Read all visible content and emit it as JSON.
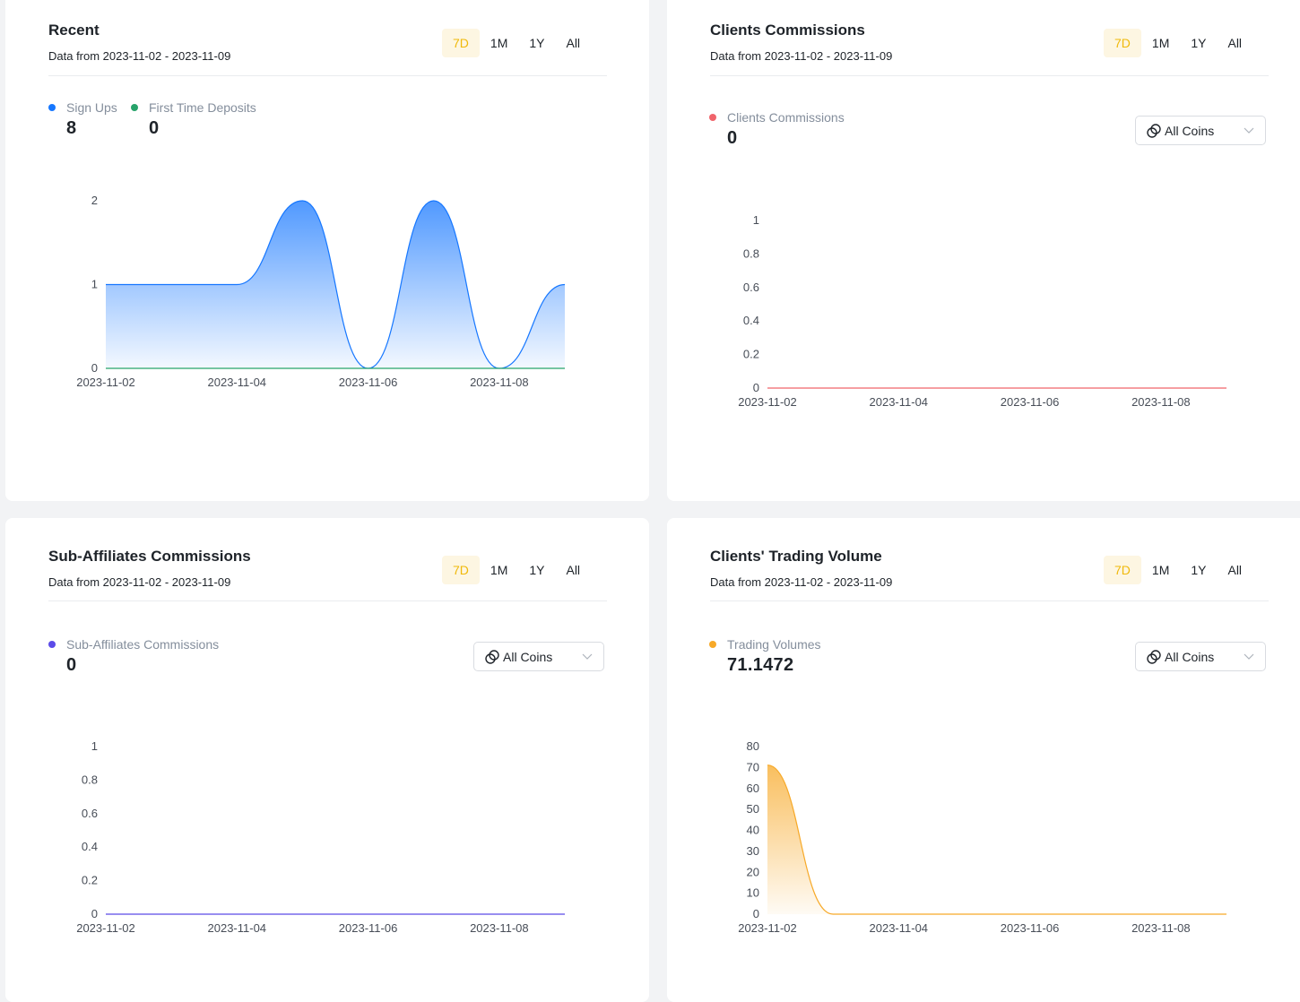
{
  "period_labels": [
    "7D",
    "1M",
    "1Y",
    "All"
  ],
  "active_period": "7D",
  "coin_select_label": "All Coins",
  "cards": [
    {
      "title": "Recent",
      "range": "Data from 2023-11-02 - 2023-11-09",
      "stats": [
        {
          "label": "Sign Ups",
          "value": "8",
          "color": "#1677ff"
        },
        {
          "label": "First Time Deposits",
          "value": "0",
          "color": "#27a36a"
        }
      ]
    },
    {
      "title": "Clients Commissions",
      "range": "Data from 2023-11-02 - 2023-11-09",
      "stats": [
        {
          "label": "Clients Commissions",
          "value": "0",
          "color": "#f0646b"
        }
      ]
    },
    {
      "title": "Sub-Affiliates Commissions",
      "range": "Data from 2023-11-02 - 2023-11-09",
      "stats": [
        {
          "label": "Sub-Affiliates Commissions",
          "value": "0",
          "color": "#5b4be8"
        }
      ]
    },
    {
      "title": "Clients' Trading Volume",
      "range": "Data from 2023-11-02 - 2023-11-09",
      "stats": [
        {
          "label": "Trading Volumes",
          "value": "71.1472",
          "color": "#f7a928"
        }
      ]
    }
  ],
  "chart_data": [
    {
      "type": "area",
      "x": [
        "2023-11-02",
        "2023-11-03",
        "2023-11-04",
        "2023-11-05",
        "2023-11-06",
        "2023-11-07",
        "2023-11-08",
        "2023-11-09"
      ],
      "xticks": [
        "2023-11-02",
        "2023-11-04",
        "2023-11-06",
        "2023-11-08"
      ],
      "yticks": [
        "0",
        "1",
        "2"
      ],
      "ylim": [
        0,
        2
      ],
      "series": [
        {
          "name": "Sign Ups",
          "values": [
            1,
            1,
            1,
            2,
            0,
            2,
            0,
            1
          ],
          "color": "#1677ff",
          "fill": true
        },
        {
          "name": "First Time Deposits",
          "values": [
            0,
            0,
            0,
            0,
            0,
            0,
            0,
            0
          ],
          "color": "#27a36a",
          "fill": false
        }
      ]
    },
    {
      "type": "line",
      "x": [
        "2023-11-02",
        "2023-11-03",
        "2023-11-04",
        "2023-11-05",
        "2023-11-06",
        "2023-11-07",
        "2023-11-08",
        "2023-11-09"
      ],
      "xticks": [
        "2023-11-02",
        "2023-11-04",
        "2023-11-06",
        "2023-11-08"
      ],
      "yticks": [
        "0",
        "0.2",
        "0.4",
        "0.6",
        "0.8",
        "1"
      ],
      "ylim": [
        0,
        1
      ],
      "series": [
        {
          "name": "Clients Commissions",
          "values": [
            0,
            0,
            0,
            0,
            0,
            0,
            0,
            0
          ],
          "color": "#f0646b",
          "fill": false
        }
      ]
    },
    {
      "type": "line",
      "x": [
        "2023-11-02",
        "2023-11-03",
        "2023-11-04",
        "2023-11-05",
        "2023-11-06",
        "2023-11-07",
        "2023-11-08",
        "2023-11-09"
      ],
      "xticks": [
        "2023-11-02",
        "2023-11-04",
        "2023-11-06",
        "2023-11-08"
      ],
      "yticks": [
        "0",
        "0.2",
        "0.4",
        "0.6",
        "0.8",
        "1"
      ],
      "ylim": [
        0,
        1
      ],
      "series": [
        {
          "name": "Sub-Affiliates Commissions",
          "values": [
            0,
            0,
            0,
            0,
            0,
            0,
            0,
            0
          ],
          "color": "#5b4be8",
          "fill": false
        }
      ]
    },
    {
      "type": "area",
      "x": [
        "2023-11-02",
        "2023-11-03",
        "2023-11-04",
        "2023-11-05",
        "2023-11-06",
        "2023-11-07",
        "2023-11-08",
        "2023-11-09"
      ],
      "xticks": [
        "2023-11-02",
        "2023-11-04",
        "2023-11-06",
        "2023-11-08"
      ],
      "yticks": [
        "0",
        "10",
        "20",
        "30",
        "40",
        "50",
        "60",
        "70",
        "80"
      ],
      "ylim": [
        0,
        80
      ],
      "series": [
        {
          "name": "Trading Volumes",
          "values": [
            71.1472,
            0,
            0,
            0,
            0,
            0,
            0,
            0
          ],
          "color": "#f7a928",
          "fill": true
        }
      ]
    }
  ]
}
